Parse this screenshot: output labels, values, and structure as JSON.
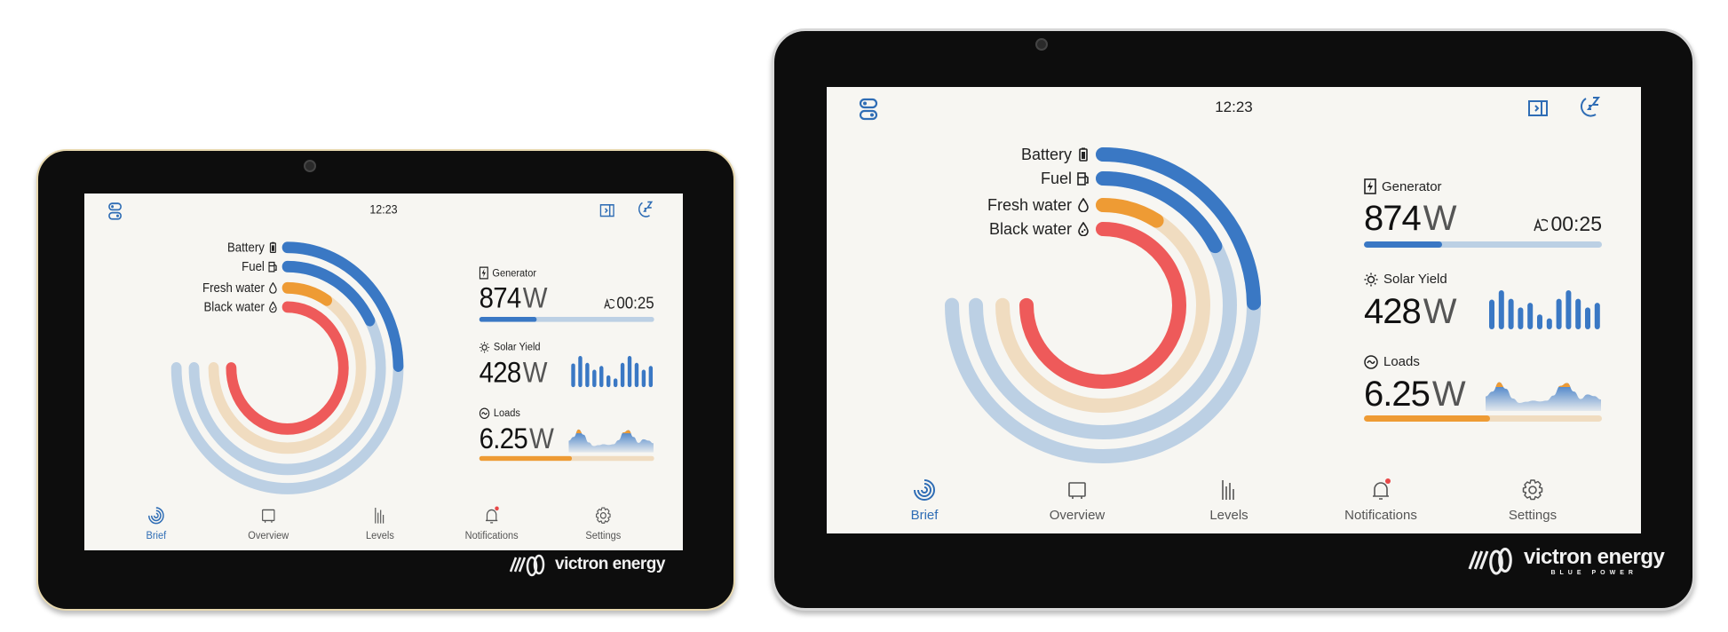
{
  "status_bar": {
    "time": "12:23",
    "left_icon": "toggles-icon",
    "right_icons": [
      "side-panel-icon",
      "sleep-icon"
    ]
  },
  "tanks": [
    {
      "label": "Battery",
      "icon": "battery-icon",
      "level_pct": 33,
      "color": "#3a78c4",
      "track": "#bcd0e4"
    },
    {
      "label": "Fuel",
      "icon": "fuel-pump-icon",
      "level_pct": 23,
      "color": "#3a78c4",
      "track": "#bcd0e4"
    },
    {
      "label": "Fresh water",
      "icon": "water-drop-icon",
      "level_pct": 12,
      "color": "#ee9b34",
      "track": "#f0dcc0"
    },
    {
      "label": "Black water",
      "icon": "waste-water-icon",
      "level_pct": 100,
      "color": "#ee5a5a",
      "track": "#f0dcc0"
    }
  ],
  "generator": {
    "label": "Generator",
    "value": "874",
    "unit": "W",
    "runtime": "00:25",
    "progress_pct": 33,
    "color": "#3a78c4",
    "track": "#bcd0e4"
  },
  "solar": {
    "label": "Solar Yield",
    "value": "428",
    "unit": "W",
    "history": [
      76,
      100,
      78,
      56,
      68,
      38,
      28,
      78,
      100,
      78,
      56,
      68
    ],
    "color": "#3a78c4"
  },
  "loads": {
    "label": "Loads",
    "value": "6.25",
    "unit": "W",
    "progress_pct": 53,
    "history": [
      45,
      62,
      95,
      72,
      38,
      22,
      26,
      30,
      27,
      30,
      48,
      82,
      92,
      62,
      36,
      52,
      46,
      34
    ],
    "color": "#ee9b34",
    "track": "#f0dcc0"
  },
  "nav": [
    {
      "label": "Brief",
      "icon": "brief-icon",
      "active": true
    },
    {
      "label": "Overview",
      "icon": "overview-icon",
      "active": false
    },
    {
      "label": "Levels",
      "icon": "levels-icon",
      "active": false
    },
    {
      "label": "Notifications",
      "icon": "bell-icon",
      "active": false
    },
    {
      "label": "Settings",
      "icon": "gear-icon",
      "active": false
    }
  ],
  "brand": {
    "name": "victron energy",
    "tagline": "BLUE POWER"
  },
  "colors": {
    "accent": "#2f6db5",
    "background": "#f7f6f2",
    "notification_dot": "#e84848"
  }
}
